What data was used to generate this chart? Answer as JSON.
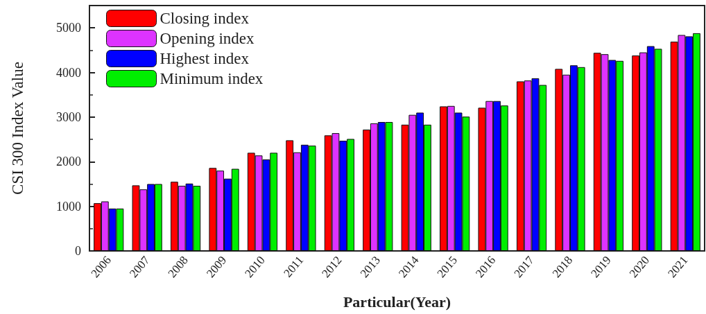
{
  "chart_data": {
    "type": "bar",
    "xlabel": "Particular(Year)",
    "ylabel": "CSI 300 Index Value",
    "categories": [
      "2006",
      "2007",
      "2008",
      "2009",
      "2010",
      "2011",
      "2012",
      "2013",
      "2014",
      "2015",
      "2016",
      "2017",
      "2018",
      "2019",
      "2020",
      "2021"
    ],
    "series": [
      {
        "name": "Closing index",
        "color": "#ff0000",
        "values": [
          1070,
          1470,
          1550,
          1860,
          2200,
          2480,
          2590,
          2720,
          2830,
          3240,
          3210,
          3800,
          4080,
          4440,
          4380,
          4690
        ]
      },
      {
        "name": "Opening index",
        "color": "#dd33ff",
        "values": [
          1110,
          1380,
          1460,
          1800,
          2140,
          2210,
          2640,
          2860,
          3050,
          3250,
          3360,
          3820,
          3950,
          4410,
          4450,
          4840
        ]
      },
      {
        "name": "Highest index",
        "color": "#0000ff",
        "values": [
          950,
          1500,
          1510,
          1620,
          2050,
          2380,
          2470,
          2890,
          3100,
          3100,
          3360,
          3870,
          4160,
          4280,
          4590,
          4810
        ]
      },
      {
        "name": "Minimum index",
        "color": "#00ee00",
        "values": [
          950,
          1500,
          1460,
          1840,
          2200,
          2360,
          2510,
          2890,
          2830,
          3010,
          3260,
          3720,
          4120,
          4260,
          4530,
          4880
        ]
      }
    ],
    "ylim": [
      0,
      5500
    ],
    "yticks": [
      0,
      1000,
      2000,
      3000,
      4000,
      5000
    ],
    "grid": false,
    "legend": "top left"
  }
}
